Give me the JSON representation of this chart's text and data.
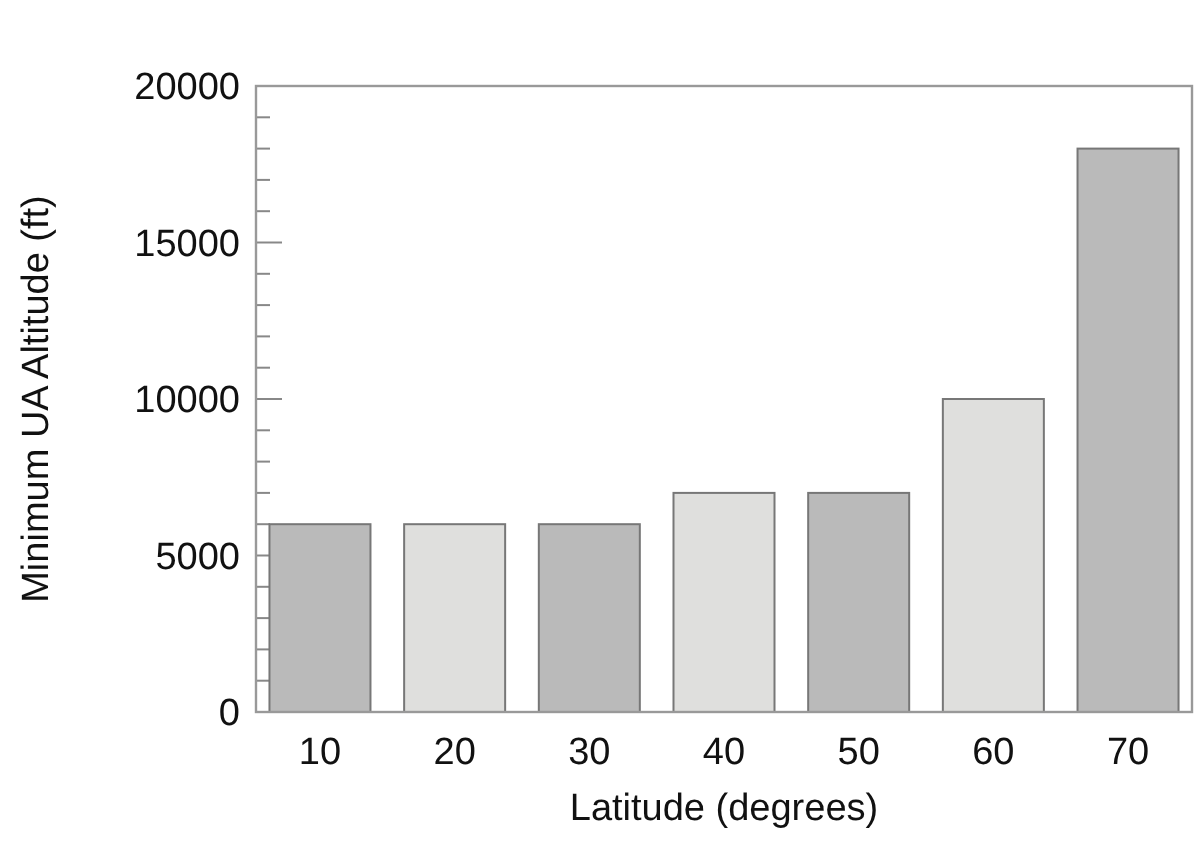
{
  "chart_data": {
    "type": "bar",
    "xlabel": "Latitude (degrees)",
    "ylabel": "Minimum UA Altitude (ft)",
    "categories": [
      "10",
      "20",
      "30",
      "40",
      "50",
      "60",
      "70"
    ],
    "values": [
      6000,
      6000,
      6000,
      7000,
      7000,
      10000,
      18000
    ],
    "colors": [
      "#bababa",
      "#dfdfdd",
      "#bababa",
      "#dfdfdd",
      "#bababa",
      "#dfdfdd",
      "#bababa"
    ],
    "ylim": [
      0,
      20000
    ],
    "yticks": [
      0,
      {
        "value": 1000,
        "label": null
      },
      {
        "value": 2000,
        "label": null
      },
      {
        "value": 3000,
        "label": null
      },
      {
        "value": 4000,
        "label": null
      },
      5000,
      {
        "value": 6000,
        "label": null
      },
      {
        "value": 7000,
        "label": null
      },
      {
        "value": 8000,
        "label": null
      },
      {
        "value": 9000,
        "label": null
      },
      10000,
      {
        "value": 11000,
        "label": null
      },
      {
        "value": 12000,
        "label": null
      },
      {
        "value": 13000,
        "label": null
      },
      {
        "value": 14000,
        "label": null
      },
      15000,
      {
        "value": 16000,
        "label": null
      },
      {
        "value": 17000,
        "label": null
      },
      {
        "value": 18000,
        "label": null
      },
      {
        "value": 19000,
        "label": null
      },
      20000
    ],
    "grid": false
  }
}
